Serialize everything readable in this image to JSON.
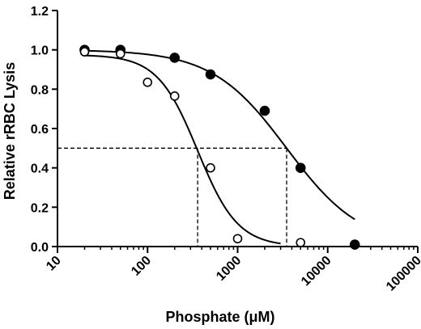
{
  "chart_data": {
    "type": "scatter",
    "title": "",
    "xlabel": "Phosphate (μM)",
    "ylabel": "Relative rRBC Lysis",
    "x_scale": "log",
    "xlim": [
      10,
      100000
    ],
    "ylim": [
      0.0,
      1.2
    ],
    "x_ticks": [
      10,
      100,
      1000,
      10000,
      100000
    ],
    "x_tick_labels": [
      "10",
      "100",
      "1000",
      "10000",
      "100000"
    ],
    "y_ticks": [
      0.0,
      0.2,
      0.4,
      0.6,
      0.8,
      1.0,
      1.2
    ],
    "y_tick_labels": [
      "0.0",
      "0.2",
      "0.4",
      "0.6",
      "0.8",
      "1.0",
      "1.2"
    ],
    "grid": false,
    "legend": "none",
    "series": [
      {
        "marker": "filled-circle",
        "color": "#000000",
        "points": [
          [
            20,
            1.0
          ],
          [
            50,
            1.0
          ],
          [
            200,
            0.96
          ],
          [
            500,
            0.875
          ],
          [
            2000,
            0.69
          ],
          [
            5000,
            0.4
          ],
          [
            20000,
            0.01
          ]
        ],
        "fit": {
          "top": 1.0,
          "bottom": 0.0,
          "ic50": 3500,
          "hill": 1.05,
          "x_end": 20000
        }
      },
      {
        "marker": "open-circle",
        "color": "#000000",
        "points": [
          [
            20,
            0.99
          ],
          [
            50,
            0.98
          ],
          [
            100,
            0.835
          ],
          [
            200,
            0.765
          ],
          [
            500,
            0.4
          ],
          [
            1000,
            0.04
          ],
          [
            5000,
            0.02
          ]
        ],
        "fit": {
          "top": 0.975,
          "bottom": 0.0,
          "ic50": 360,
          "hill": 1.95,
          "x_end": 3000
        }
      }
    ],
    "reference_lines": {
      "y": 0.5,
      "x_values": [
        360,
        3500
      ]
    }
  }
}
